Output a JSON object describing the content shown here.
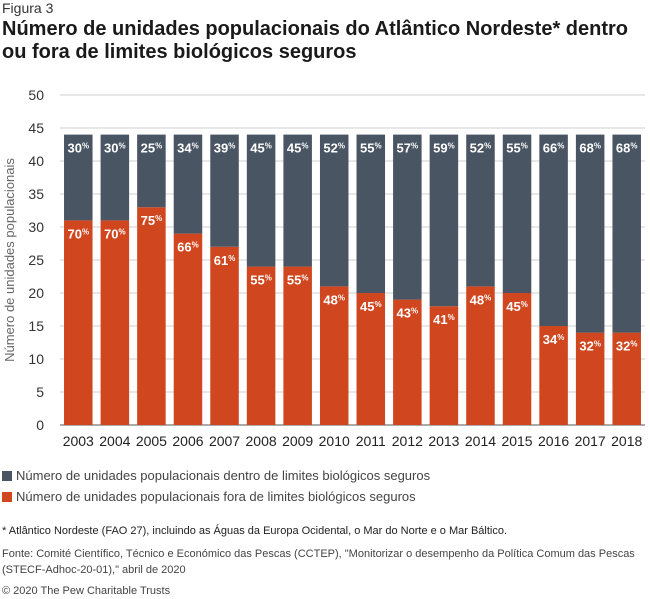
{
  "figure_label": "Figura 3",
  "title": "Número de unidades populacionais do Atlântico Nordeste* dentro ou fora de limites biológicos seguros",
  "colors": {
    "inside": "#4a5563",
    "outside": "#d0461f",
    "grid": "#cfcfcf"
  },
  "legend": [
    {
      "label": "Número de unidades populacionais dentro de limites biológicos seguros",
      "color": "#4a5563"
    },
    {
      "label": "Número de unidades populacionais fora de limites biológicos seguros",
      "color": "#d0461f"
    }
  ],
  "footnote": "* Atlântico Nordeste (FAO 27), incluindo as Águas da Europa Ocidental, o Mar do Norte e o Mar Báltico.",
  "source": "Fonte: Comité Científico, Técnico e Económico das Pescas (CCTEP), \"Monitorizar o desempenho da Política Comum das Pescas (STECF-Adhoc-20-01),\" abril de 2020",
  "copyright": "© 2020 The Pew Charitable Trusts",
  "chart_data": {
    "type": "bar",
    "stacked": true,
    "ylabel": "Número de unidades populacionais",
    "ylim": [
      0,
      50
    ],
    "yticks": [
      0,
      5,
      10,
      15,
      20,
      25,
      30,
      35,
      40,
      45,
      50
    ],
    "grid": true,
    "categories": [
      "2003",
      "2004",
      "2005",
      "2006",
      "2007",
      "2008",
      "2009",
      "2010",
      "2011",
      "2012",
      "2013",
      "2014",
      "2015",
      "2016",
      "2017",
      "2018"
    ],
    "series": [
      {
        "key": "outside",
        "name": "Número de unidades populacionais fora de limites biológicos seguros",
        "color": "#d0461f",
        "values": [
          31,
          31,
          33,
          29,
          27,
          24,
          24,
          21,
          20,
          19,
          18,
          21,
          20,
          15,
          14,
          14
        ],
        "labels": [
          "70%",
          "70%",
          "75%",
          "66%",
          "61%",
          "55%",
          "55%",
          "48%",
          "45%",
          "43%",
          "41%",
          "48%",
          "45%",
          "34%",
          "32%",
          "32%"
        ]
      },
      {
        "key": "inside",
        "name": "Número de unidades populacionais dentro de limites biológicos seguros",
        "color": "#4a5563",
        "values": [
          13,
          13,
          11,
          15,
          17,
          20,
          20,
          23,
          24,
          25,
          26,
          23,
          24,
          29,
          30,
          30
        ],
        "labels": [
          "30%",
          "30%",
          "25%",
          "34%",
          "39%",
          "45%",
          "45%",
          "52%",
          "55%",
          "57%",
          "59%",
          "52%",
          "55%",
          "66%",
          "68%",
          "68%"
        ]
      }
    ]
  }
}
